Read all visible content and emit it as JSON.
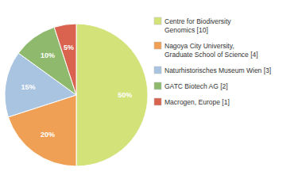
{
  "chart_data": {
    "type": "pie",
    "categories": [
      "Centre for Biodiversity\nGenomics [10]",
      "Nagoya City University,\nGraduate School of Science [4]",
      "Naturhistorisches Museum Wien [3]",
      "GATC Biotech AG [2]",
      "Macrogen, Europe [1]"
    ],
    "values": [
      50,
      20,
      15,
      10,
      5
    ],
    "value_labels": [
      "50%",
      "20%",
      "15%",
      "10%",
      "5%"
    ],
    "colors": [
      "#d4e27a",
      "#f0a055",
      "#a8c4e0",
      "#8fba6e",
      "#d9634e"
    ],
    "data_labels": true,
    "legend": "right"
  }
}
